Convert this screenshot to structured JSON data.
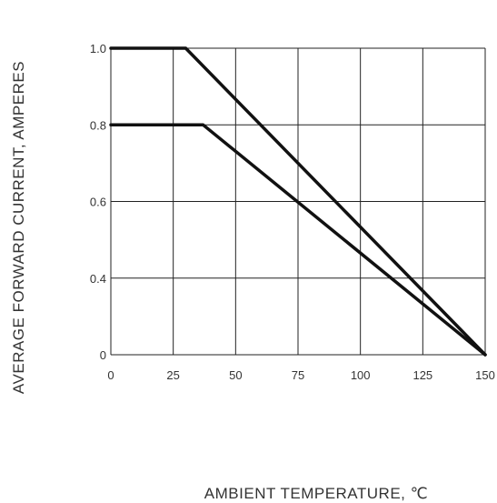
{
  "chart_data": {
    "type": "line",
    "title": "",
    "xlabel": "AMBIENT TEMPERATURE, ℃",
    "ylabel": "AVERAGE FORWARD CURRENT,  AMPERES",
    "x_ticks": [
      "0",
      "25",
      "50",
      "75",
      "100",
      "125",
      "150"
    ],
    "y_ticks": [
      "0",
      "0.4",
      "0.6",
      "0.8",
      "1.0"
    ],
    "xlim": [
      0,
      150
    ],
    "grid": true,
    "legend": "none",
    "series": [
      {
        "x": [
          0,
          30,
          150
        ],
        "y": [
          1.0,
          1.0,
          0
        ]
      },
      {
        "x": [
          0,
          37,
          150
        ],
        "y": [
          0.8,
          0.8,
          0
        ]
      }
    ]
  },
  "colors": {
    "line": "#111111",
    "grid": "#222222",
    "text": "#333333"
  }
}
